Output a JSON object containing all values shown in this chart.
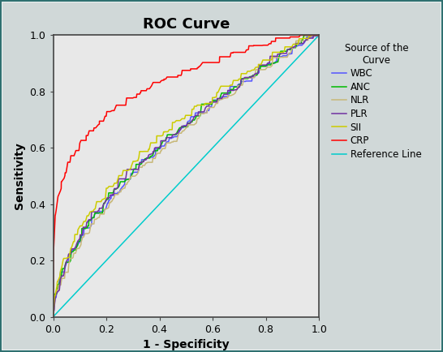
{
  "title": "ROC Curve",
  "xlabel": "1 - Specificity",
  "ylabel": "Sensitivity",
  "xlim": [
    0.0,
    1.0
  ],
  "ylim": [
    0.0,
    1.0
  ],
  "xticks": [
    0.0,
    0.2,
    0.4,
    0.6,
    0.8,
    1.0
  ],
  "yticks": [
    0.0,
    0.2,
    0.4,
    0.6,
    0.8,
    1.0
  ],
  "figure_bg_color": "#d0d8d8",
  "plot_bg_color": "#e8e8e8",
  "outer_border_color": "#2f7070",
  "curves": [
    {
      "name": "WBC",
      "color": "#5555ff",
      "auc": 0.635,
      "seed": 10
    },
    {
      "name": "ANC",
      "color": "#00bb00",
      "auc": 0.64,
      "seed": 20
    },
    {
      "name": "NLR",
      "color": "#c8b878",
      "auc": 0.625,
      "seed": 30
    },
    {
      "name": "PLR",
      "color": "#7030a0",
      "auc": 0.64,
      "seed": 40
    },
    {
      "name": "SII",
      "color": "#cccc00",
      "auc": 0.66,
      "seed": 50
    },
    {
      "name": "CRP",
      "color": "#ff0000",
      "auc": 0.82,
      "seed": 60
    }
  ],
  "reference_color": "#00cccc",
  "legend_title": "Source of the\nCurve",
  "title_fontsize": 13,
  "label_fontsize": 10,
  "tick_fontsize": 9,
  "legend_fontsize": 8.5,
  "linewidth": 1.1
}
